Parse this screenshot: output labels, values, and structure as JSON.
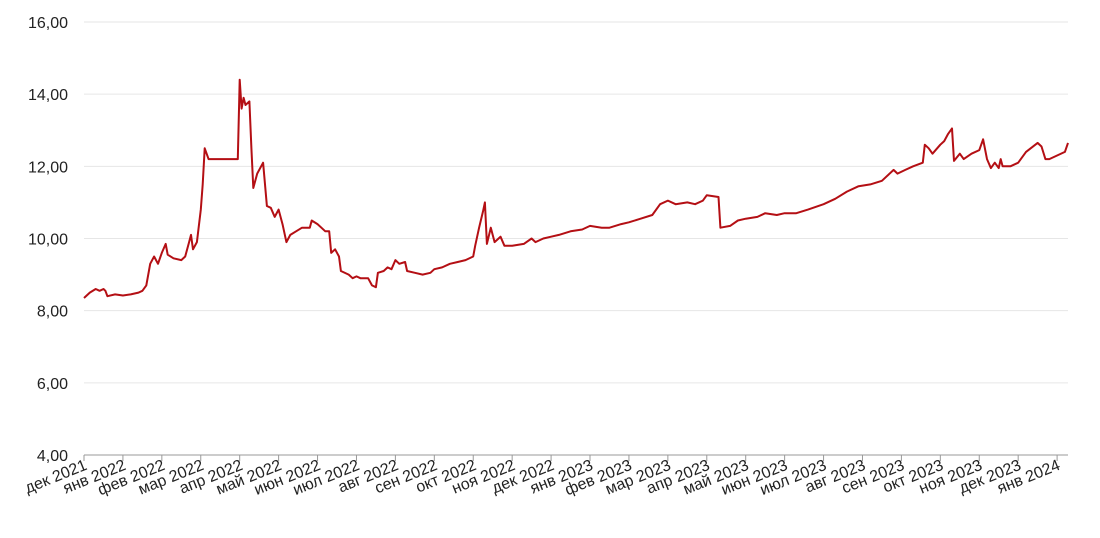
{
  "chart_data": {
    "type": "line",
    "color": "#b40f14",
    "grid": true,
    "x": [
      0,
      0.15,
      0.3,
      0.4,
      0.5,
      0.55,
      0.6,
      0.8,
      1.0,
      1.2,
      1.4,
      1.5,
      1.6,
      1.7,
      1.8,
      1.9,
      2.0,
      2.1,
      2.15,
      2.3,
      2.5,
      2.6,
      2.7,
      2.75,
      2.8,
      2.9,
      3.0,
      3.05,
      3.1,
      3.2,
      3.5,
      3.8,
      3.95,
      4.0,
      4.05,
      4.1,
      4.15,
      4.25,
      4.3,
      4.35,
      4.45,
      4.6,
      4.7,
      4.8,
      4.9,
      5.0,
      5.1,
      5.2,
      5.3,
      5.45,
      5.6,
      5.8,
      5.85,
      6.0,
      6.1,
      6.2,
      6.3,
      6.35,
      6.45,
      6.55,
      6.6,
      6.8,
      6.9,
      7.0,
      7.1,
      7.3,
      7.4,
      7.5,
      7.55,
      7.7,
      7.8,
      7.9,
      8.0,
      8.1,
      8.25,
      8.3,
      8.5,
      8.7,
      8.9,
      9.0,
      9.2,
      9.4,
      9.6,
      9.8,
      10.0,
      10.05,
      10.15,
      10.25,
      10.3,
      10.35,
      10.45,
      10.55,
      10.7,
      10.8,
      11.0,
      11.3,
      11.5,
      11.6,
      11.8,
      12.0,
      12.2,
      12.5,
      12.8,
      13.0,
      13.3,
      13.5,
      13.8,
      14.0,
      14.3,
      14.6,
      14.8,
      15.0,
      15.2,
      15.5,
      15.7,
      15.9,
      16.0,
      16.3,
      16.35,
      16.6,
      16.8,
      17.0,
      17.3,
      17.5,
      17.8,
      18.0,
      18.3,
      18.6,
      19.0,
      19.3,
      19.6,
      19.9,
      20.2,
      20.5,
      20.8,
      20.9,
      21.1,
      21.3,
      21.55,
      21.6,
      21.7,
      21.8,
      22.0,
      22.1,
      22.2,
      22.3,
      22.35,
      22.5,
      22.6,
      22.8,
      23.0,
      23.1,
      23.2,
      23.3,
      23.4,
      23.5,
      23.55,
      23.6,
      23.8,
      24.0,
      24.2,
      24.5,
      24.6,
      24.7,
      24.8,
      25.0,
      25.2,
      25.28
    ],
    "values": [
      8.35,
      8.5,
      8.6,
      8.55,
      8.6,
      8.55,
      8.4,
      8.45,
      8.42,
      8.45,
      8.5,
      8.55,
      8.7,
      9.3,
      9.5,
      9.3,
      9.6,
      9.85,
      9.55,
      9.45,
      9.4,
      9.5,
      9.9,
      10.1,
      9.7,
      9.9,
      10.8,
      11.5,
      12.5,
      12.2,
      12.2,
      12.2,
      12.2,
      14.4,
      13.6,
      13.9,
      13.7,
      13.8,
      12.5,
      11.4,
      11.8,
      12.1,
      10.9,
      10.85,
      10.6,
      10.8,
      10.4,
      9.9,
      10.1,
      10.2,
      10.3,
      10.3,
      10.5,
      10.4,
      10.3,
      10.2,
      10.2,
      9.6,
      9.7,
      9.5,
      9.1,
      9.0,
      8.9,
      8.95,
      8.9,
      8.9,
      8.7,
      8.65,
      9.05,
      9.1,
      9.2,
      9.15,
      9.4,
      9.3,
      9.35,
      9.1,
      9.05,
      9.0,
      9.05,
      9.15,
      9.2,
      9.3,
      9.35,
      9.4,
      9.5,
      9.8,
      10.3,
      10.75,
      11.0,
      9.85,
      10.3,
      9.9,
      10.05,
      9.8,
      9.8,
      9.85,
      10.0,
      9.9,
      10.0,
      10.05,
      10.1,
      10.2,
      10.25,
      10.35,
      10.3,
      10.3,
      10.4,
      10.45,
      10.55,
      10.65,
      10.95,
      11.05,
      10.95,
      11.0,
      10.95,
      11.05,
      11.2,
      11.15,
      10.3,
      10.35,
      10.5,
      10.55,
      10.6,
      10.7,
      10.65,
      10.7,
      10.7,
      10.8,
      10.95,
      11.1,
      11.3,
      11.45,
      11.5,
      11.6,
      11.9,
      11.8,
      11.9,
      12.0,
      12.1,
      12.6,
      12.5,
      12.35,
      12.6,
      12.7,
      12.9,
      13.05,
      12.15,
      12.35,
      12.2,
      12.35,
      12.45,
      12.75,
      12.2,
      11.95,
      12.1,
      11.95,
      12.2,
      12.0,
      12.0,
      12.1,
      12.4,
      12.65,
      12.55,
      12.2,
      12.2,
      12.3,
      12.4,
      12.65
    ],
    "xlim": [
      0,
      25.28
    ],
    "xticks": [
      {
        "value": 0,
        "label": "дек 2021"
      },
      {
        "value": 1,
        "label": "янв 2022"
      },
      {
        "value": 2,
        "label": "фев 2022"
      },
      {
        "value": 3,
        "label": "мар 2022"
      },
      {
        "value": 4,
        "label": "апр 2022"
      },
      {
        "value": 5,
        "label": "май 2022"
      },
      {
        "value": 6,
        "label": "июн 2022"
      },
      {
        "value": 7,
        "label": "июл 2022"
      },
      {
        "value": 8,
        "label": "авг 2022"
      },
      {
        "value": 9,
        "label": "сен 2022"
      },
      {
        "value": 10,
        "label": "окт 2022"
      },
      {
        "value": 11,
        "label": "ноя 2022"
      },
      {
        "value": 12,
        "label": "дек 2022"
      },
      {
        "value": 13,
        "label": "янв 2023"
      },
      {
        "value": 14,
        "label": "фев 2023"
      },
      {
        "value": 15,
        "label": "мар 2023"
      },
      {
        "value": 16,
        "label": "апр 2023"
      },
      {
        "value": 17,
        "label": "май 2023"
      },
      {
        "value": 18,
        "label": "июн 2023"
      },
      {
        "value": 19,
        "label": "июл 2023"
      },
      {
        "value": 20,
        "label": "авг 2023"
      },
      {
        "value": 21,
        "label": "сен 2023"
      },
      {
        "value": 22,
        "label": "окт 2023"
      },
      {
        "value": 23,
        "label": "ноя 2023"
      },
      {
        "value": 24,
        "label": "дек 2023"
      },
      {
        "value": 25,
        "label": "янв 2024"
      }
    ],
    "ylim": [
      4,
      16
    ],
    "yticks": [
      {
        "value": 4,
        "label": "4,00"
      },
      {
        "value": 6,
        "label": "6,00"
      },
      {
        "value": 8,
        "label": "8,00"
      },
      {
        "value": 10,
        "label": "10,00"
      },
      {
        "value": 12,
        "label": "12,00"
      },
      {
        "value": 14,
        "label": "14,00"
      },
      {
        "value": 16,
        "label": "16,00"
      }
    ]
  }
}
